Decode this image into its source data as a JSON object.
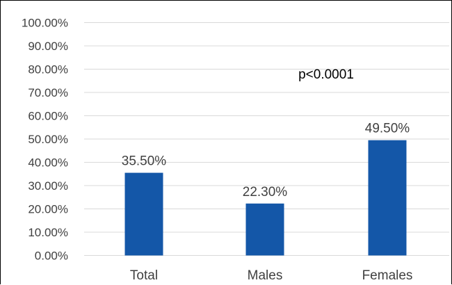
{
  "chart_data": {
    "type": "bar",
    "categories": [
      "Total",
      "Males",
      "Females"
    ],
    "values": [
      35.5,
      22.3,
      49.5
    ],
    "data_labels": [
      "35.50%",
      "22.30%",
      "49.50%"
    ],
    "ylim": [
      0,
      100
    ],
    "yticks": [
      0,
      10,
      20,
      30,
      40,
      50,
      60,
      70,
      80,
      90,
      100
    ],
    "ytick_labels": [
      "0.00%",
      "10.00%",
      "20.00%",
      "30.00%",
      "40.00%",
      "50.00%",
      "60.00%",
      "70.00%",
      "80.00%",
      "90.00%",
      "100.00%"
    ],
    "grid": true,
    "annotation": "p<0.0001",
    "bar_color": "#1457a8"
  }
}
